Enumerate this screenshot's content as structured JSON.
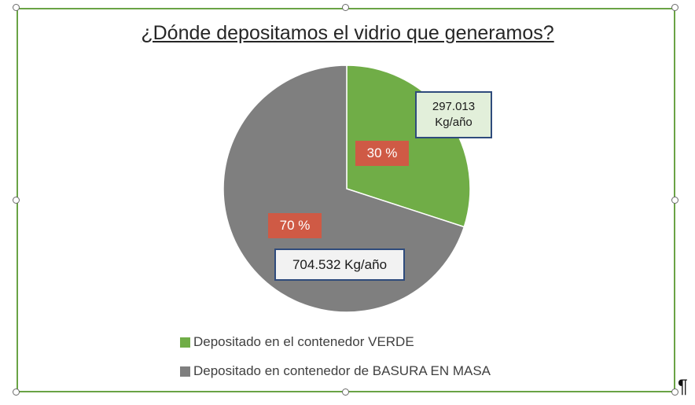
{
  "chart_data": {
    "type": "pie",
    "title": "¿Dónde depositamos el vidrio que generamos?",
    "slices": [
      {
        "name": "Depositado en el contenedor VERDE",
        "percent": 30,
        "percent_label": "30 %",
        "value": 297013,
        "value_label": "297.013 Kg/año",
        "color": "#70ad47"
      },
      {
        "name": "Depositado en contenedor de BASURA EN MASA",
        "percent": 70,
        "percent_label": "70 %",
        "value": 704532,
        "value_label": "704.532 Kg/año",
        "color": "#7f7f7f"
      }
    ],
    "legend_position": "bottom"
  },
  "colors": {
    "frame_border": "#6aa345",
    "percent_label_bg": "#cf5a45",
    "value_label_border": "#2f4b7c",
    "value_label_bg_green": "#e2efda",
    "value_label_bg_gray": "#f2f2f2"
  },
  "trailing_mark": "¶"
}
